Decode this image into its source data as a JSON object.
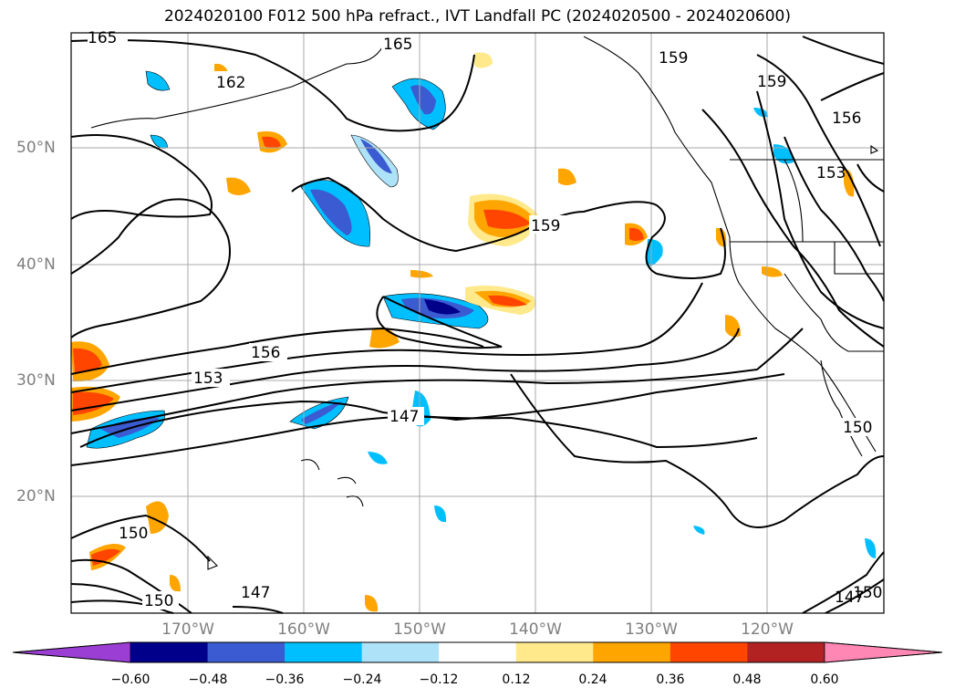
{
  "title": "2024020100 F012 500 hPa refract., IVT Landfall PC (2024020500 - 2024020600)",
  "lat_labels": [
    "50°N",
    "40°N",
    "30°N",
    "20°N"
  ],
  "lon_labels": [
    "170°W",
    "160°W",
    "150°W",
    "140°W",
    "130°W",
    "120°W"
  ],
  "colorbar": {
    "ticks": [
      "−0.60",
      "−0.48",
      "−0.36",
      "−0.24",
      "−0.12",
      "0.12",
      "0.24",
      "0.36",
      "0.48",
      "0.60"
    ],
    "colors": [
      "#9b3fd4",
      "#00008b",
      "#3a5bd1",
      "#00bfff",
      "#aee2f8",
      "#ffffff",
      "#ffe98a",
      "#ffa500",
      "#ff4500",
      "#b22222",
      "#ff87b4"
    ]
  },
  "contour_labels": [
    "165",
    "165",
    "162",
    "159",
    "159",
    "156",
    "159",
    "153",
    "156",
    "153",
    "147",
    "150",
    "150",
    "150",
    "147",
    "147",
    "150"
  ]
}
